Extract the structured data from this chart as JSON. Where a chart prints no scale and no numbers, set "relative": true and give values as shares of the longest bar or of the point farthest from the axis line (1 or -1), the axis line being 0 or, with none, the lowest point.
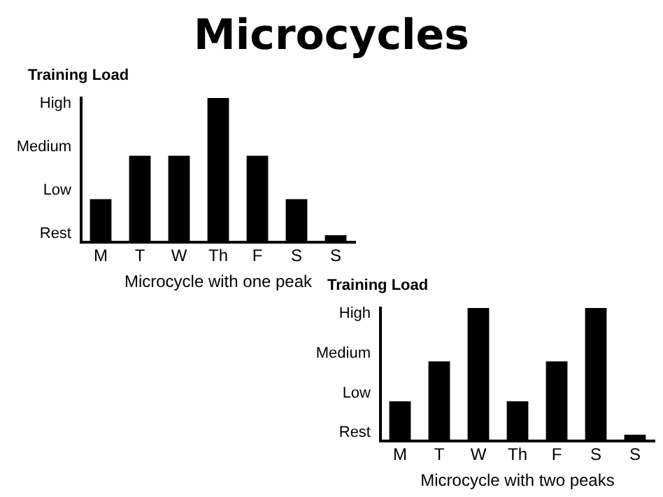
{
  "chart_data": [
    {
      "type": "bar",
      "title": "Microcycles",
      "ylabel": "Training Load",
      "xlabel": "Microcycle with one peak",
      "categories": [
        "M",
        "T",
        "W",
        "Th",
        "F",
        "S",
        "S"
      ],
      "values": [
        0.3,
        0.6,
        0.6,
        1,
        0.6,
        0.3,
        0.05
      ],
      "color": "#000000",
      "relative": true,
      "annotations": [
        "Rest",
        "Low",
        "Medium",
        "High"
      ],
      "grid": false,
      "legend": false
    },
    {
      "type": "bar",
      "ylabel": "Training Load",
      "xlabel": "Microcycle with two peaks",
      "categories": [
        "M",
        "T",
        "W",
        "Th",
        "F",
        "S",
        "S"
      ],
      "values": [
        0.3,
        0.6,
        1,
        0.3,
        0.6,
        1,
        0.05
      ],
      "color": "#000000",
      "relative": true,
      "annotations": [
        "Rest",
        "Low",
        "Medium",
        "High"
      ],
      "grid": false,
      "legend": false
    }
  ]
}
